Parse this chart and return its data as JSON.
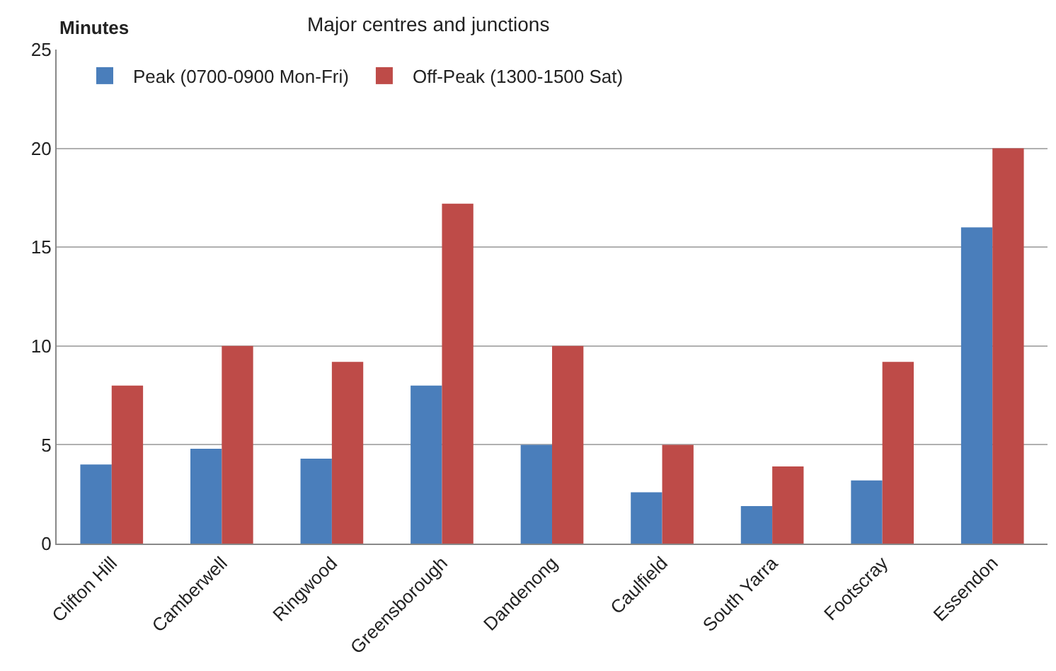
{
  "chart_data": {
    "type": "bar",
    "title": "Major centres and junctions",
    "ylabel": "Minutes",
    "categories": [
      "Clifton Hill",
      "Camberwell",
      "Ringwood",
      "Greensborough",
      "Dandenong",
      "Caulfield",
      "South Yarra",
      "Footscray",
      "Essendon"
    ],
    "series": [
      {
        "name": "Peak (0700-0900 Mon-Fri)",
        "color": "#4a7ebb",
        "values": [
          4,
          4.8,
          4.3,
          8,
          5,
          2.6,
          1.9,
          3.2,
          16
        ]
      },
      {
        "name": "Off-Peak (1300-1500 Sat)",
        "color": "#be4b48",
        "values": [
          8,
          10,
          9.2,
          17.2,
          10,
          5,
          3.9,
          9.2,
          20
        ]
      }
    ],
    "ylim": [
      0,
      25
    ],
    "yticks": [
      0,
      5,
      10,
      15,
      20,
      25
    ],
    "grid": "y",
    "legend": "top left"
  }
}
